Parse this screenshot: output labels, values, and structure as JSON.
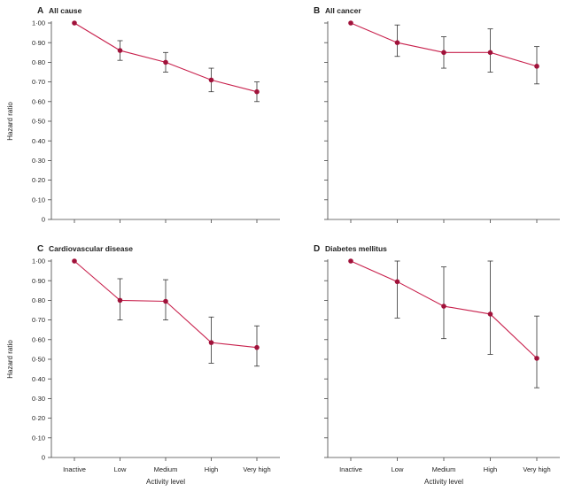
{
  "chart_data": [
    {
      "type": "line",
      "letter": "A",
      "title": "All cause",
      "categories": [
        "Inactive",
        "Low",
        "Medium",
        "High",
        "Very high"
      ],
      "values": [
        1.0,
        0.86,
        0.8,
        0.71,
        0.65
      ],
      "ci_lower": [
        1.0,
        0.81,
        0.75,
        0.65,
        0.6
      ],
      "ci_upper": [
        1.0,
        0.91,
        0.85,
        0.77,
        0.7
      ],
      "xlabel": "",
      "ylabel": "Hazard ratio",
      "ylim": [
        0,
        1.0
      ],
      "yticks": [
        0,
        0.1,
        0.2,
        0.3,
        0.4,
        0.5,
        0.6,
        0.7,
        0.8,
        0.9,
        1.0
      ],
      "ytick_labels": [
        "0",
        "0·10",
        "0·20",
        "0·30",
        "0·40",
        "0·50",
        "0·60",
        "0·70",
        "0·80",
        "0·90",
        "1·00"
      ],
      "xtick_labels": []
    },
    {
      "type": "line",
      "letter": "B",
      "title": "All cancer",
      "categories": [
        "Inactive",
        "Low",
        "Medium",
        "High",
        "Very high"
      ],
      "values": [
        1.0,
        0.9,
        0.85,
        0.85,
        0.78
      ],
      "ci_lower": [
        1.0,
        0.83,
        0.77,
        0.75,
        0.69
      ],
      "ci_upper": [
        1.0,
        0.99,
        0.93,
        0.97,
        0.88
      ],
      "xlabel": "",
      "ylabel": "",
      "ylim": [
        0,
        1.0
      ],
      "yticks": [
        0,
        0.1,
        0.2,
        0.3,
        0.4,
        0.5,
        0.6,
        0.7,
        0.8,
        0.9,
        1.0
      ],
      "ytick_labels": [],
      "xtick_labels": []
    },
    {
      "type": "line",
      "letter": "C",
      "title": "Cardiovascular disease",
      "categories": [
        "Inactive",
        "Low",
        "Medium",
        "High",
        "Very high"
      ],
      "values": [
        1.0,
        0.8,
        0.795,
        0.585,
        0.56
      ],
      "ci_lower": [
        1.0,
        0.7,
        0.7,
        0.48,
        0.465
      ],
      "ci_upper": [
        1.0,
        0.91,
        0.905,
        0.715,
        0.67
      ],
      "xlabel": "Activity level",
      "ylabel": "Hazard ratio",
      "ylim": [
        0,
        1.0
      ],
      "yticks": [
        0,
        0.1,
        0.2,
        0.3,
        0.4,
        0.5,
        0.6,
        0.7,
        0.8,
        0.9,
        1.0
      ],
      "ytick_labels": [
        "0",
        "0·10",
        "0·20",
        "0·30",
        "0·40",
        "0·50",
        "0·60",
        "0·70",
        "0·80",
        "0·90",
        "1·00"
      ],
      "xtick_labels": [
        "Inactive",
        "Low",
        "Medium",
        "High",
        "Very high"
      ]
    },
    {
      "type": "line",
      "letter": "D",
      "title": "Diabetes mellitus",
      "categories": [
        "Inactive",
        "Low",
        "Medium",
        "High",
        "Very high"
      ],
      "values": [
        1.0,
        0.895,
        0.77,
        0.73,
        0.505
      ],
      "ci_lower": [
        1.0,
        0.71,
        0.605,
        0.525,
        0.355
      ],
      "ci_upper": [
        1.0,
        1.0,
        0.97,
        1.0,
        0.72
      ],
      "xlabel": "Activity level",
      "ylabel": "",
      "ylim": [
        0,
        1.0
      ],
      "yticks": [
        0,
        0.1,
        0.2,
        0.3,
        0.4,
        0.5,
        0.6,
        0.7,
        0.8,
        0.9,
        1.0
      ],
      "ytick_labels": [],
      "xtick_labels": [
        "Inactive",
        "Low",
        "Medium",
        "High",
        "Very high"
      ]
    }
  ],
  "colors": {
    "series": "#c8204c",
    "marker": "#a0123a",
    "error_bar": "#333333",
    "axis": "#444444"
  }
}
